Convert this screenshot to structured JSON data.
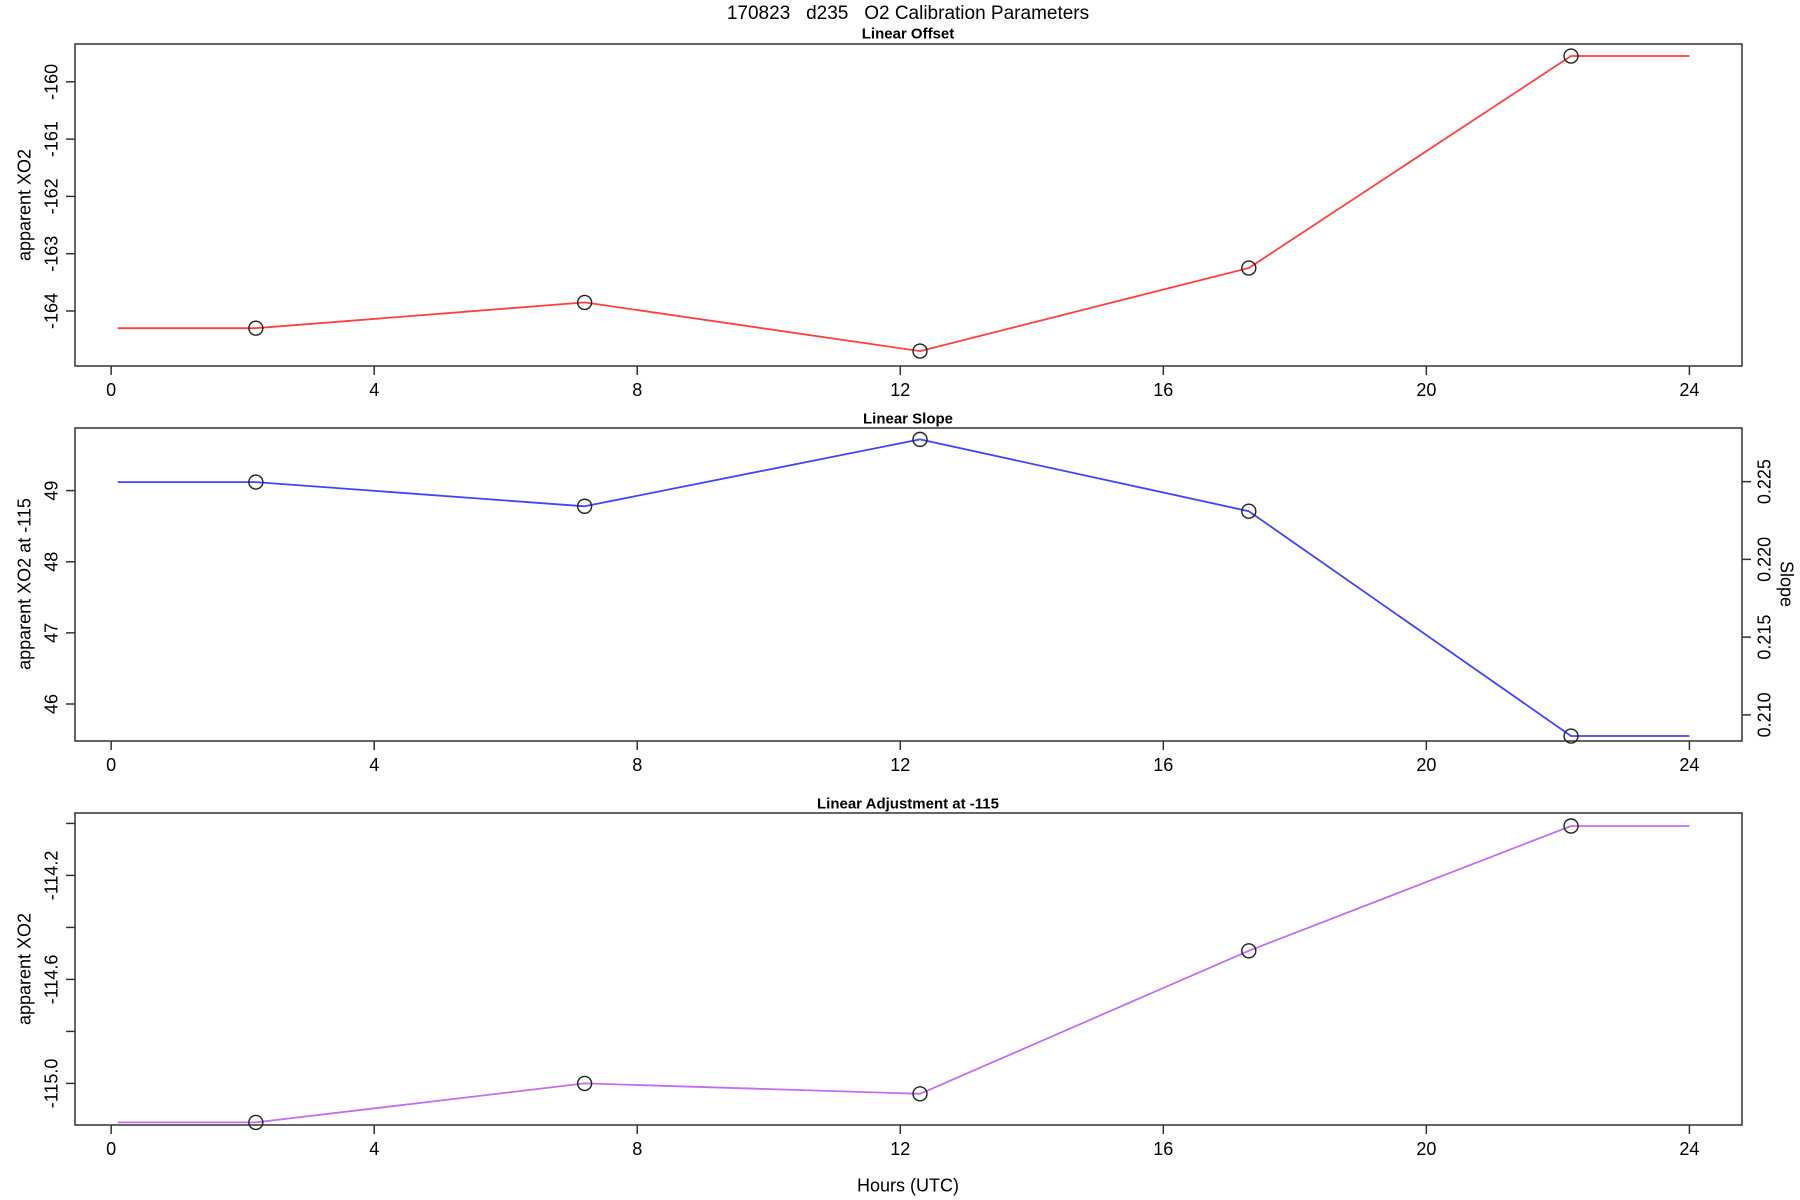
{
  "page": {
    "title": "170823   d235   O2 Calibration Parameters",
    "xlabel": "Hours (UTC)",
    "background": "#ffffff",
    "frame_color": "#333333",
    "marker_color": "#222222",
    "text_color": "#000000"
  },
  "chart_data": [
    {
      "type": "line",
      "title": "Linear Offset",
      "ylabel": "apparent XO2",
      "line_color": "#ff4040",
      "marker": "open-circle",
      "x": [
        2.2,
        7.2,
        12.3,
        17.3,
        22.2
      ],
      "y": [
        -164.3,
        -163.85,
        -164.7,
        -163.25,
        -159.55
      ],
      "line_extension_x": [
        0.1,
        24
      ],
      "xlim": [
        -0.55,
        24.8
      ],
      "ylim": [
        -164.96,
        -159.34
      ],
      "xticks": [
        0,
        4,
        8,
        12,
        16,
        20,
        24
      ],
      "xtick_labels": [
        "0",
        "4",
        "8",
        "12",
        "16",
        "20",
        "24"
      ],
      "yticks": [
        -164,
        -163,
        -162,
        -161,
        -160
      ],
      "ytick_labels": [
        "-164",
        "-163",
        "-162",
        "-161",
        "-160"
      ],
      "grid": false,
      "legend": null
    },
    {
      "type": "line",
      "title": "Linear Slope",
      "ylabel": "apparent XO2 at -115",
      "ylabel_right": "Slope",
      "line_color": "#4343ff",
      "marker": "open-circle",
      "x": [
        2.2,
        7.2,
        12.3,
        17.3,
        22.2
      ],
      "y": [
        49.12,
        48.78,
        49.72,
        48.71,
        45.55
      ],
      "y_right_equivalent": [
        0.225,
        0.2234,
        0.2277,
        0.2231,
        0.2087
      ],
      "line_extension_x": [
        0.1,
        24
      ],
      "xlim": [
        -0.55,
        24.8
      ],
      "ylim": [
        45.48,
        49.88
      ],
      "ylim_right": [
        0.20832,
        0.22845
      ],
      "xticks": [
        0,
        4,
        8,
        12,
        16,
        20,
        24
      ],
      "xtick_labels": [
        "0",
        "4",
        "8",
        "12",
        "16",
        "20",
        "24"
      ],
      "yticks": [
        46,
        47,
        48,
        49
      ],
      "ytick_labels": [
        "46",
        "47",
        "48",
        "49"
      ],
      "yticks_right": [
        0.21,
        0.215,
        0.22,
        0.225
      ],
      "ytick_right_labels": [
        "0.210",
        "0.215",
        "0.220",
        "0.225"
      ],
      "grid": false,
      "legend": null
    },
    {
      "type": "line",
      "title": "Linear Adjustment at -115",
      "ylabel": "apparent XO2",
      "line_color": "#c26ef0",
      "marker": "open-circle",
      "x": [
        2.2,
        7.2,
        12.3,
        17.3,
        22.2
      ],
      "y": [
        -115.15,
        -115.0,
        -115.04,
        -114.49,
        -114.01
      ],
      "line_extension_x": [
        0.1,
        24
      ],
      "xlim": [
        -0.55,
        24.8
      ],
      "ylim": [
        -115.16,
        -113.96
      ],
      "xticks": [
        0,
        4,
        8,
        12,
        16,
        20,
        24
      ],
      "xtick_labels": [
        "0",
        "4",
        "8",
        "12",
        "16",
        "20",
        "24"
      ],
      "yticks": [
        -115.0,
        -114.8,
        -114.6,
        -114.4,
        -114.2,
        -114.0
      ],
      "ytick_labels": [
        "-115.0",
        "",
        "-114.6",
        "",
        "-114.2",
        ""
      ],
      "grid": false,
      "legend": null
    }
  ]
}
